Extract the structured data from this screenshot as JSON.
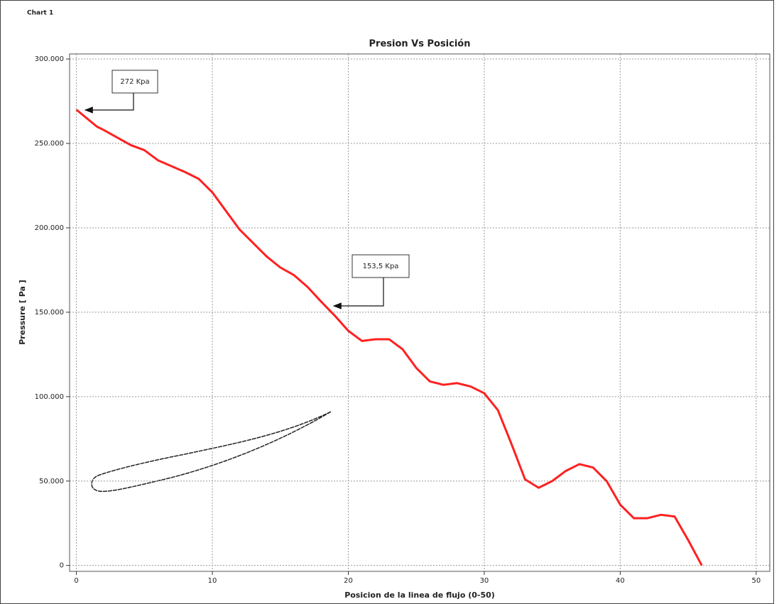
{
  "chart_data": {
    "type": "line",
    "panel_label": "Chart 1",
    "title": "Presion Vs Posición",
    "x_label": "Posicion de la linea de flujo (0-50)",
    "y_label": "Pressure [ Pa ]",
    "x": [
      0,
      1.5,
      2,
      4,
      5,
      6,
      8,
      9,
      10,
      11,
      12,
      14,
      15,
      16,
      17,
      18,
      19,
      20,
      21,
      22,
      23,
      24,
      25,
      26,
      27,
      28,
      29,
      30,
      31,
      32,
      33,
      34,
      35,
      36,
      37,
      38,
      39,
      40,
      41,
      42,
      43,
      44,
      45,
      46
    ],
    "series": [
      {
        "color": "#ff2020",
        "values": [
          270000,
          260000,
          258000,
          249000,
          246000,
          240000,
          233000,
          229000,
          221000,
          210000,
          199000,
          183000,
          176500,
          172000,
          165000,
          156300,
          148000,
          139000,
          133000,
          134000,
          134000,
          128000,
          117000,
          109000,
          107000,
          108000,
          106000,
          102000,
          92000,
          72000,
          51000,
          46000,
          50000,
          56000,
          60000,
          58000,
          50000,
          36000,
          28000,
          28000,
          30000,
          29000,
          15000,
          0
        ]
      }
    ],
    "xlim": [
      -0.5,
      51
    ],
    "ylim": [
      -3500,
      303000
    ],
    "xticks": [
      0,
      10,
      20,
      30,
      40,
      50
    ],
    "yticks": [
      0,
      {
        "value": 50000,
        "label": "50.000"
      },
      {
        "value": 100000,
        "label": "100.000"
      },
      {
        "value": 150000,
        "label": "150.000"
      },
      {
        "value": 200000,
        "label": "200.000"
      },
      {
        "value": 250000,
        "label": "250.000"
      },
      {
        "value": 300000,
        "label": "300.000"
      }
    ],
    "grid": true,
    "annotations": [
      {
        "text": "272 Kpa"
      },
      {
        "text": "153,5 Kpa"
      }
    ]
  }
}
